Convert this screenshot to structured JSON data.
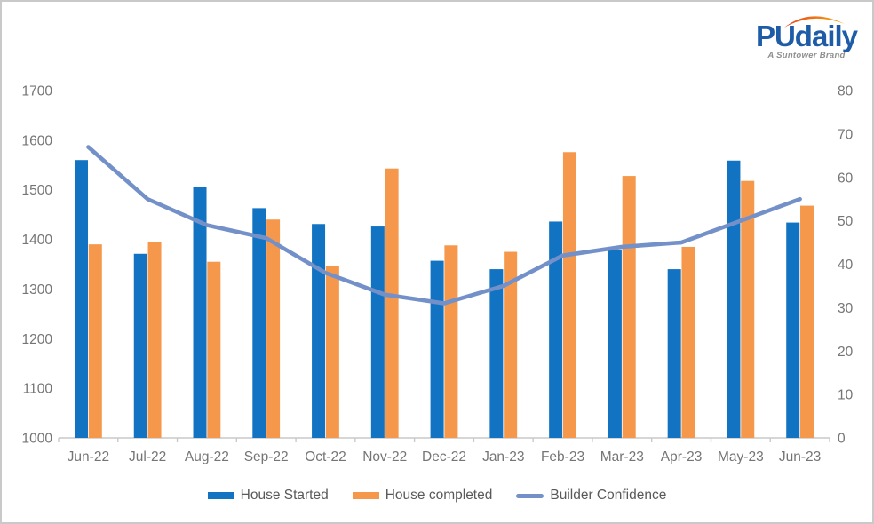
{
  "logo": {
    "brand": "PUdaily",
    "tagline": "A Suntower Brand",
    "brand_color": "#1e5ca8",
    "arc_color_left": "#e2441e",
    "arc_color_right": "#f9ae00"
  },
  "colors": {
    "bar_started": "#1273c2",
    "bar_completed": "#f5984b",
    "line_confidence": "#7391c8",
    "axis_text": "#757575",
    "axis_line": "#c9c9c9",
    "legend_text": "#595959"
  },
  "chart_data": {
    "type": "bar",
    "subtype": "grouped-bars-with-line",
    "title": "",
    "categories": [
      "Jun-22",
      "Jul-22",
      "Aug-22",
      "Sep-22",
      "Oct-22",
      "Nov-22",
      "Dec-22",
      "Jan-23",
      "Feb-23",
      "Mar-23",
      "Apr-23",
      "May-23",
      "Jun-23"
    ],
    "series": [
      {
        "name": "House Started",
        "type": "bar",
        "axis": "left",
        "values": [
          1560,
          1371,
          1505,
          1463,
          1431,
          1426,
          1357,
          1340,
          1436,
          1378,
          1340,
          1559,
          1434
        ]
      },
      {
        "name": "House completed",
        "type": "bar",
        "axis": "left",
        "values": [
          1390,
          1395,
          1355,
          1440,
          1346,
          1543,
          1388,
          1375,
          1576,
          1528,
          1385,
          1518,
          1468
        ]
      },
      {
        "name": "Builder Confidence",
        "type": "line",
        "axis": "right",
        "values": [
          67,
          55,
          49,
          46,
          38,
          33,
          31,
          35,
          42,
          44,
          45,
          50,
          55
        ]
      }
    ],
    "left_axis": {
      "min": 1000,
      "max": 1700,
      "step": 100,
      "tick_labels": [
        "1700",
        "1600",
        "1500",
        "1400",
        "1300",
        "1200",
        "1100",
        "1000"
      ]
    },
    "right_axis": {
      "min": 0,
      "max": 80,
      "step": 10,
      "tick_labels": [
        "80",
        "70",
        "60",
        "50",
        "40",
        "30",
        "20",
        "10",
        "0"
      ]
    },
    "grid": false,
    "legend_position": "bottom"
  }
}
